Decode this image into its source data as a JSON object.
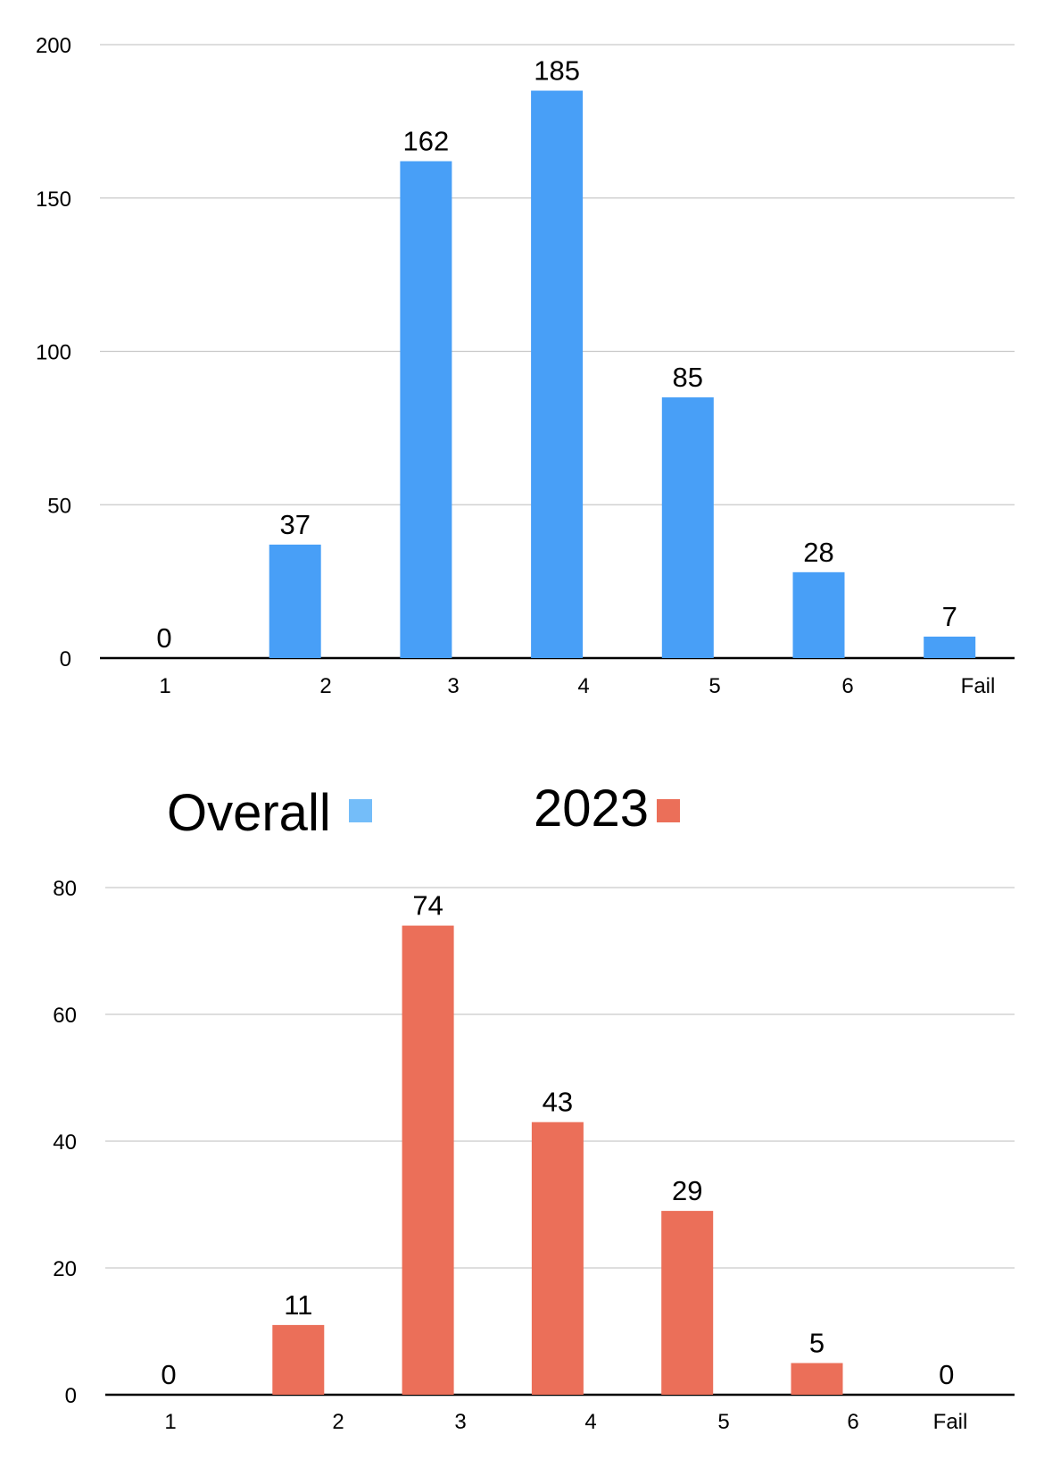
{
  "legend": {
    "items": [
      {
        "label": "Overall",
        "color": "#74BDF9"
      },
      {
        "label": "2023",
        "color": "#EB6F59"
      }
    ]
  },
  "chart_data": [
    {
      "type": "bar",
      "categories": [
        "1",
        "2",
        "3",
        "4",
        "5",
        "6",
        "Fail"
      ],
      "series": [
        {
          "name": "Overall",
          "values": [
            0,
            37,
            162,
            185,
            85,
            28,
            7
          ]
        }
      ],
      "ylim": [
        0,
        200
      ],
      "yticks": [
        0,
        50,
        100,
        150,
        200
      ],
      "color": "#489FF7",
      "grid": true
    },
    {
      "type": "bar",
      "categories": [
        "1",
        "2",
        "3",
        "4",
        "5",
        "6",
        "Fail"
      ],
      "series": [
        {
          "name": "2023",
          "values": [
            0,
            11,
            74,
            43,
            29,
            5,
            0
          ]
        }
      ],
      "ylim": [
        0,
        80
      ],
      "yticks": [
        0,
        20,
        40,
        60,
        80
      ],
      "color": "#EB6F59",
      "grid": true
    }
  ]
}
